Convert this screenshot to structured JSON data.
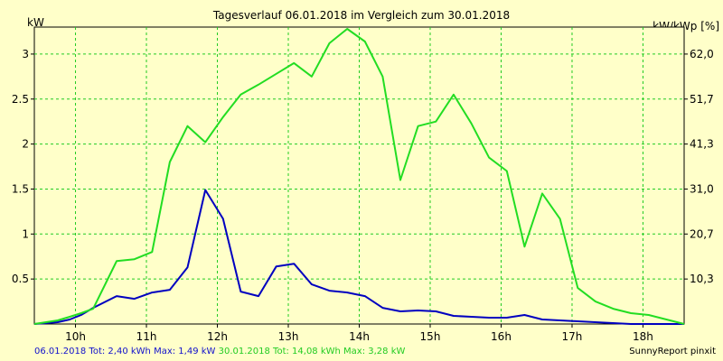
{
  "header": {
    "title": "Tagesverlauf 06.01.2018 im Vergleich zum 30.01.2018",
    "unit_left": "kW",
    "unit_right": "kW/kWp [%]"
  },
  "footer": {
    "series1_text": "06.01.2018 Tot: 2,40 kWh Max: 1,49 kW",
    "series2_text": "30.01.2018 Tot: 14,08 kWh Max: 3,28 kW",
    "brand": "SunnyReport pinxit"
  },
  "chart_data": {
    "type": "line",
    "title": "Tagesverlauf 06.01.2018 im Vergleich zum 30.01.2018",
    "ylabel": "kW",
    "ylabel_right": "kW/kWp [%]",
    "xlim": [
      9.42,
      18.58
    ],
    "ylim": [
      0,
      3.3
    ],
    "grid": true,
    "x_ticks": [
      {
        "x": 10,
        "label": "10h"
      },
      {
        "x": 11,
        "label": "11h"
      },
      {
        "x": 12,
        "label": "12h"
      },
      {
        "x": 13,
        "label": "13h"
      },
      {
        "x": 14,
        "label": "14h"
      },
      {
        "x": 15,
        "label": "15h"
      },
      {
        "x": 16,
        "label": "16h"
      },
      {
        "x": 17,
        "label": "17h"
      },
      {
        "x": 18,
        "label": "18h"
      }
    ],
    "y_ticks": [
      {
        "y": 0.5,
        "label": "0.5"
      },
      {
        "y": 1,
        "label": "1"
      },
      {
        "y": 1.5,
        "label": "1.5"
      },
      {
        "y": 2,
        "label": "2"
      },
      {
        "y": 2.5,
        "label": "2.5"
      },
      {
        "y": 3,
        "label": "3"
      }
    ],
    "y2_ticks": [
      {
        "y": 0.5,
        "label": "10,3"
      },
      {
        "y": 1,
        "label": "20,7"
      },
      {
        "y": 1.5,
        "label": "31,0"
      },
      {
        "y": 2,
        "label": "41,3"
      },
      {
        "y": 2.5,
        "label": "51,7"
      },
      {
        "y": 3,
        "label": "62,0"
      }
    ],
    "series": [
      {
        "name": "06.01.2018",
        "color": "#0000c0",
        "points": [
          [
            9.42,
            0
          ],
          [
            9.75,
            0.02
          ],
          [
            9.92,
            0.05
          ],
          [
            10.08,
            0.1
          ],
          [
            10.25,
            0.18
          ],
          [
            10.58,
            0.31
          ],
          [
            10.83,
            0.28
          ],
          [
            11.08,
            0.35
          ],
          [
            11.33,
            0.38
          ],
          [
            11.58,
            0.63
          ],
          [
            11.83,
            1.49
          ],
          [
            12.08,
            1.17
          ],
          [
            12.33,
            0.36
          ],
          [
            12.58,
            0.31
          ],
          [
            12.83,
            0.64
          ],
          [
            13.08,
            0.67
          ],
          [
            13.33,
            0.44
          ],
          [
            13.58,
            0.37
          ],
          [
            13.83,
            0.35
          ],
          [
            14.08,
            0.31
          ],
          [
            14.33,
            0.18
          ],
          [
            14.58,
            0.14
          ],
          [
            14.83,
            0.15
          ],
          [
            15.08,
            0.14
          ],
          [
            15.33,
            0.09
          ],
          [
            15.58,
            0.08
          ],
          [
            15.83,
            0.07
          ],
          [
            16.08,
            0.07
          ],
          [
            16.33,
            0.1
          ],
          [
            16.58,
            0.05
          ],
          [
            16.83,
            0.04
          ],
          [
            17.08,
            0.03
          ],
          [
            17.33,
            0.02
          ],
          [
            17.58,
            0.01
          ],
          [
            17.83,
            0
          ],
          [
            18.58,
            0
          ]
        ]
      },
      {
        "name": "30.01.2018",
        "color": "#22dd22",
        "points": [
          [
            9.42,
            0
          ],
          [
            9.75,
            0.04
          ],
          [
            9.92,
            0.08
          ],
          [
            10.08,
            0.12
          ],
          [
            10.25,
            0.17
          ],
          [
            10.58,
            0.7
          ],
          [
            10.83,
            0.72
          ],
          [
            11.08,
            0.8
          ],
          [
            11.33,
            1.8
          ],
          [
            11.58,
            2.2
          ],
          [
            11.83,
            2.02
          ],
          [
            12.08,
            2.3
          ],
          [
            12.33,
            2.55
          ],
          [
            12.58,
            2.66
          ],
          [
            12.83,
            2.78
          ],
          [
            13.08,
            2.9
          ],
          [
            13.33,
            2.75
          ],
          [
            13.58,
            3.12
          ],
          [
            13.83,
            3.28
          ],
          [
            14.08,
            3.14
          ],
          [
            14.33,
            2.75
          ],
          [
            14.58,
            1.6
          ],
          [
            14.83,
            2.2
          ],
          [
            15.08,
            2.25
          ],
          [
            15.33,
            2.55
          ],
          [
            15.58,
            2.23
          ],
          [
            15.83,
            1.85
          ],
          [
            16.08,
            1.7
          ],
          [
            16.33,
            0.86
          ],
          [
            16.58,
            1.45
          ],
          [
            16.83,
            1.17
          ],
          [
            17.08,
            0.4
          ],
          [
            17.33,
            0.25
          ],
          [
            17.58,
            0.17
          ],
          [
            17.83,
            0.12
          ],
          [
            18.08,
            0.1
          ],
          [
            18.33,
            0.05
          ],
          [
            18.58,
            0
          ]
        ]
      }
    ]
  }
}
